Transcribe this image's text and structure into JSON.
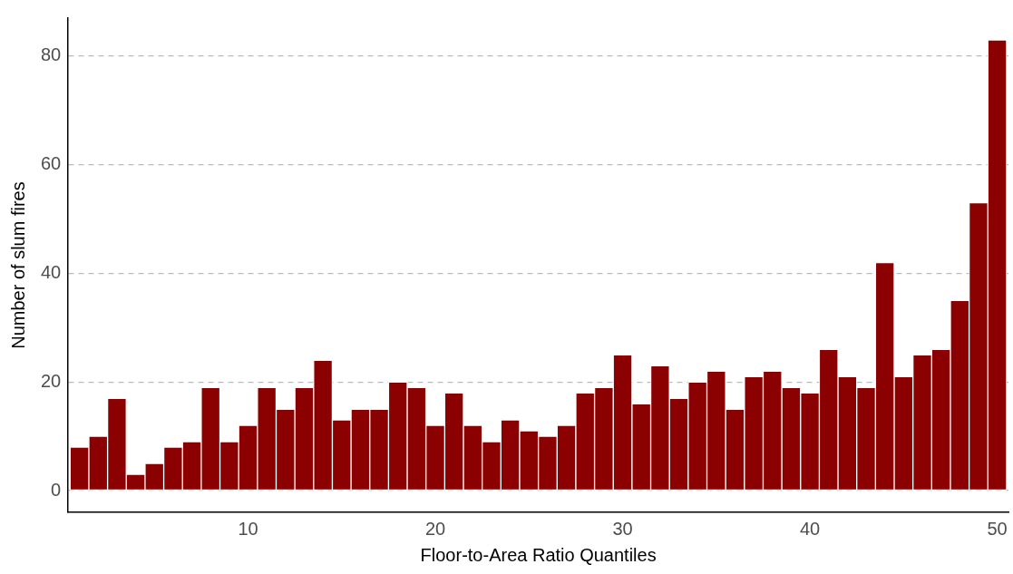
{
  "chart_data": {
    "type": "bar",
    "xlabel": "Floor-to-Area Ratio Quantiles",
    "ylabel": "Number of slum fires",
    "x": [
      1,
      2,
      3,
      4,
      5,
      6,
      7,
      8,
      9,
      10,
      11,
      12,
      13,
      14,
      15,
      16,
      17,
      18,
      19,
      20,
      21,
      22,
      23,
      24,
      25,
      26,
      27,
      28,
      29,
      30,
      31,
      32,
      33,
      34,
      35,
      36,
      37,
      38,
      39,
      40,
      41,
      42,
      43,
      44,
      45,
      46,
      47,
      48,
      49,
      50
    ],
    "values": [
      8,
      10,
      17,
      3,
      5,
      8,
      9,
      19,
      9,
      12,
      19,
      15,
      19,
      24,
      13,
      15,
      15,
      20,
      19,
      12,
      18,
      12,
      9,
      13,
      11,
      10,
      12,
      18,
      19,
      25,
      16,
      23,
      17,
      20,
      22,
      15,
      21,
      22,
      19,
      18,
      26,
      21,
      19,
      42,
      21,
      25,
      26,
      35,
      53,
      83
    ],
    "color": "#8b0000",
    "xlim": [
      0.4,
      50.6
    ],
    "xticks": [
      10,
      20,
      30,
      40,
      50
    ],
    "ylim": [
      -4,
      87
    ],
    "yticks": [
      0,
      20,
      40,
      60,
      80
    ],
    "grid": "y",
    "legend": false
  }
}
